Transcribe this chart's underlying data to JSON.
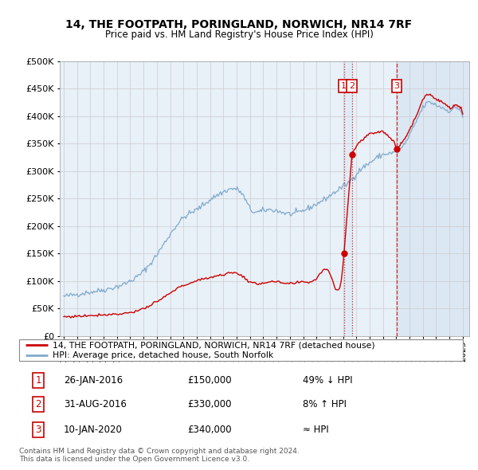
{
  "title": "14, THE FOOTPATH, PORINGLAND, NORWICH, NR14 7RF",
  "subtitle": "Price paid vs. HM Land Registry's House Price Index (HPI)",
  "property_label": "14, THE FOOTPATH, PORINGLAND, NORWICH, NR14 7RF (detached house)",
  "hpi_label": "HPI: Average price, detached house, South Norfolk",
  "footnote1": "Contains HM Land Registry data © Crown copyright and database right 2024.",
  "footnote2": "This data is licensed under the Open Government Licence v3.0.",
  "transactions": [
    {
      "num": 1,
      "date": "26-JAN-2016",
      "date_num": 2016.07,
      "price": 150000,
      "note": "49% ↓ HPI"
    },
    {
      "num": 2,
      "date": "31-AUG-2016",
      "date_num": 2016.67,
      "price": 330000,
      "note": "8% ↑ HPI"
    },
    {
      "num": 3,
      "date": "10-JAN-2020",
      "date_num": 2020.03,
      "price": 340000,
      "note": "≈ HPI"
    }
  ],
  "ylim": [
    0,
    500000
  ],
  "yticks": [
    0,
    50000,
    100000,
    150000,
    200000,
    250000,
    300000,
    350000,
    400000,
    450000,
    500000
  ],
  "xlim_start": 1994.7,
  "xlim_end": 2025.5,
  "property_color": "#cc0000",
  "hpi_color": "#7faacc",
  "vline_color": "#cc0000",
  "grid_color": "#cccccc",
  "box_color": "#cc0000",
  "chart_bg": "#e8f0f8",
  "highlight_bg": "#dce8f5"
}
